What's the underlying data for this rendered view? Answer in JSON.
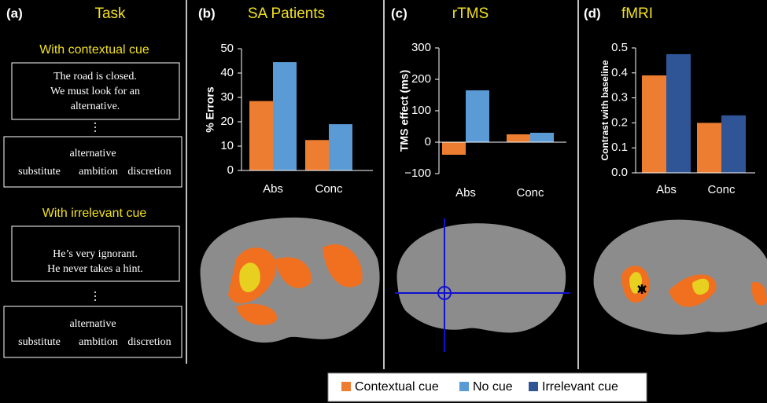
{
  "task": {
    "panel": "(a)",
    "title": "Task",
    "sections": [
      {
        "heading": "With contextual cue",
        "context": [
          "The road is closed.",
          "We must look for an",
          "alternative."
        ],
        "probe": "alternative",
        "choices": [
          "substitute",
          "ambition",
          "discretion"
        ]
      },
      {
        "heading": "With irrelevant cue",
        "context": [
          "He’s very ignorant.",
          "He never takes a hint."
        ],
        "probe": "alternative",
        "choices": [
          "substitute",
          "ambition",
          "discretion"
        ]
      }
    ]
  },
  "chart_data": [
    {
      "type": "bar",
      "panel": "(b)",
      "title": "SA Patients",
      "ylabel": "% Errors",
      "categories": [
        "Abs",
        "Conc"
      ],
      "series": [
        {
          "color": "#ed7d31",
          "values": [
            28.5,
            12.5
          ]
        },
        {
          "color": "#5b9bd5",
          "values": [
            44.5,
            19
          ]
        }
      ],
      "ylim": [
        0,
        50
      ],
      "yticks": [
        0,
        10,
        20,
        30,
        40,
        50
      ]
    },
    {
      "type": "bar",
      "panel": "(c)",
      "title": "rTMS",
      "ylabel": "TMS effect (ms)",
      "categories": [
        "Abs",
        "Conc"
      ],
      "series": [
        {
          "color": "#ed7d31",
          "values": [
            -40,
            25
          ]
        },
        {
          "color": "#5b9bd5",
          "values": [
            165,
            30
          ]
        }
      ],
      "ylim": [
        -100,
        300
      ],
      "yticks": [
        {
          "value": -100,
          "label": "−100"
        },
        0,
        100,
        200,
        300
      ]
    },
    {
      "type": "bar",
      "panel": "(d)",
      "title": "fMRI",
      "ylabel": "Contrast with baseline",
      "categories": [
        "Abs",
        "Conc"
      ],
      "series": [
        {
          "color": "#ed7d31",
          "values": [
            0.39,
            0.2
          ]
        },
        {
          "color": "#2f5597",
          "values": [
            0.475,
            0.23
          ]
        }
      ],
      "ylim": [
        0,
        0.5
      ],
      "yticks": [
        {
          "value": 0,
          "label": "0.0"
        },
        0.1,
        0.2,
        0.3,
        0.4,
        0.5
      ]
    }
  ],
  "legend": [
    {
      "name": "Contextual cue",
      "color": "#ed7d31"
    },
    {
      "name": "No cue",
      "color": "#5b9bd5"
    },
    {
      "name": "Irrelevant cue",
      "color": "#2f5597"
    }
  ]
}
